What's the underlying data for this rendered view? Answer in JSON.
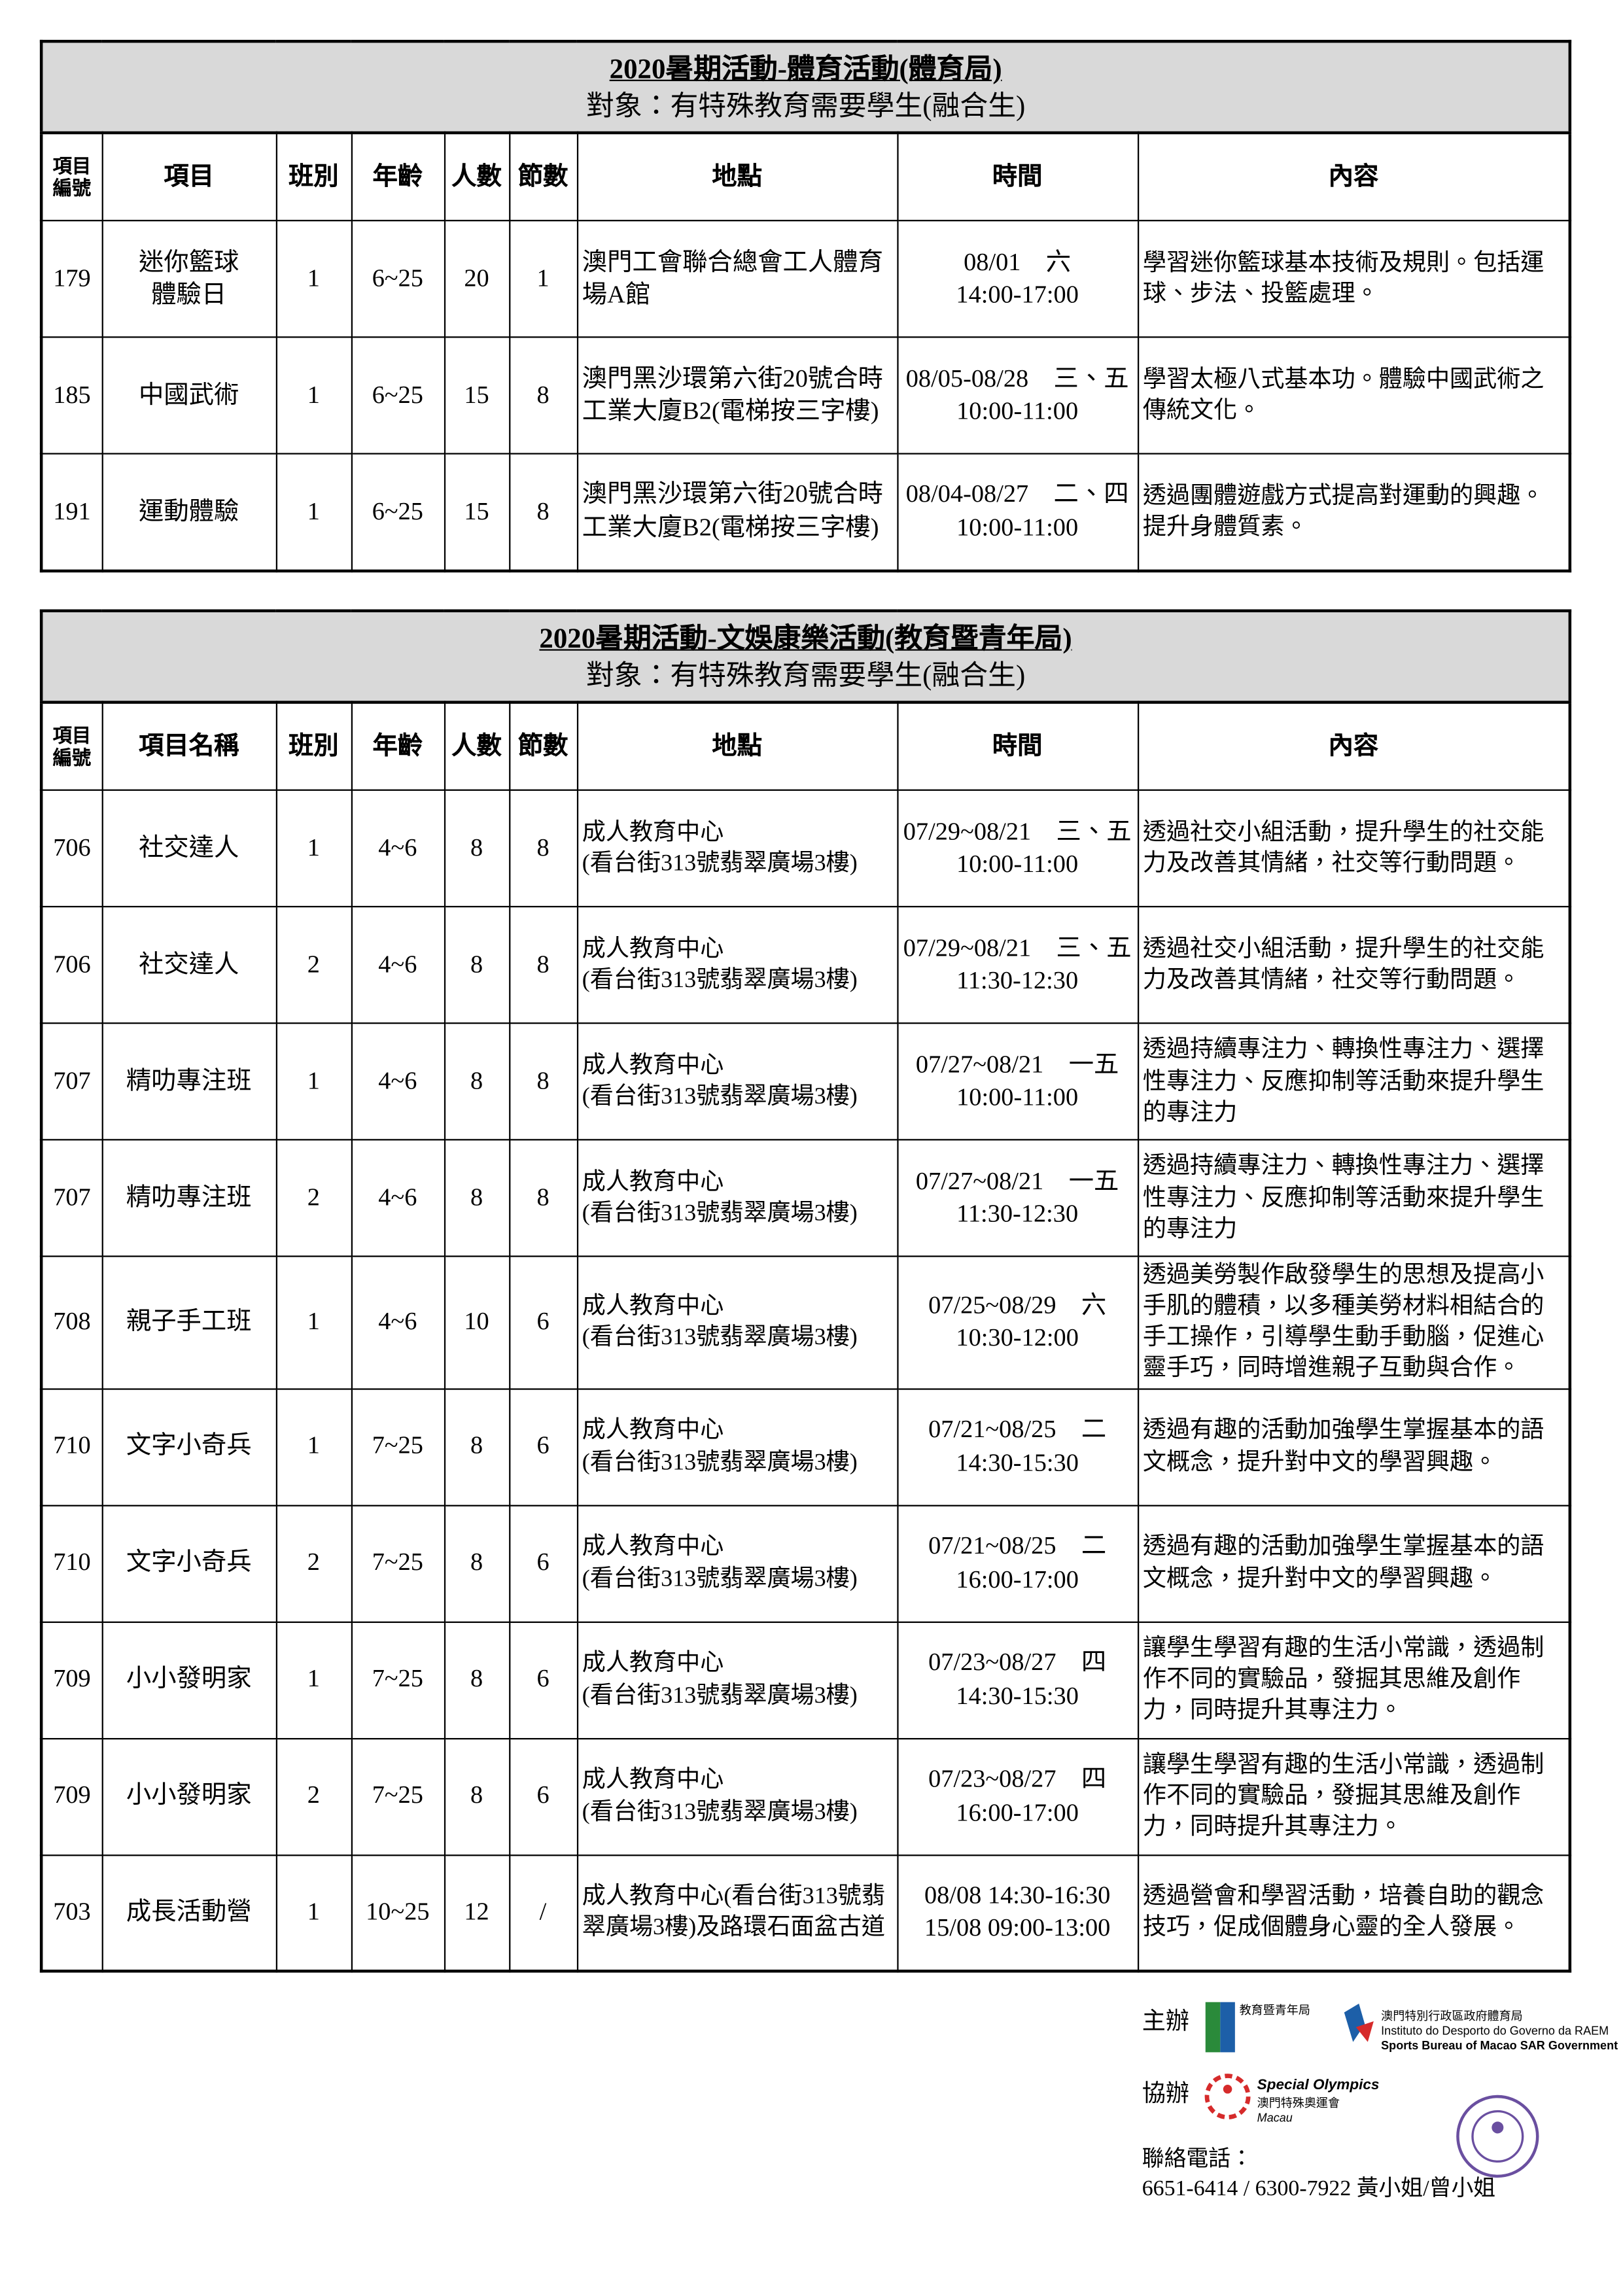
{
  "tables": [
    {
      "title": "2020暑期活動-體育活動(體育局)",
      "subtitle": "對象：有特殊教育需要學生(融合生)",
      "columns": [
        "項目\n編號",
        "項目",
        "班別",
        "年齡",
        "人數",
        "節數",
        "地點",
        "時間",
        "內容"
      ],
      "rows": [
        [
          "179",
          "迷你籃球\n體驗日",
          "1",
          "6~25",
          "20",
          "1",
          "澳門工會聯合總會工人體育場A館",
          "08/01　六\n14:00-17:00",
          "學習迷你籃球基本技術及規則。包括運球、步法、投籃處理。"
        ],
        [
          "185",
          "中國武術",
          "1",
          "6~25",
          "15",
          "8",
          "澳門黑沙環第六街20號合時工業大廈B2(電梯按三字樓)",
          "08/05-08/28　三、五\n10:00-11:00",
          "學習太極八式基本功。體驗中國武術之傳統文化。"
        ],
        [
          "191",
          "運動體驗",
          "1",
          "6~25",
          "15",
          "8",
          "澳門黑沙環第六街20號合時工業大廈B2(電梯按三字樓)",
          "08/04-08/27　二、四\n10:00-11:00",
          "透過團體遊戲方式提高對運動的興趣。提升身體質素。"
        ]
      ]
    },
    {
      "title": "2020暑期活動-文娛康樂活動(教育暨青年局)",
      "subtitle": "對象：有特殊教育需要學生(融合生)",
      "columns": [
        "項目\n編號",
        "項目名稱",
        "班別",
        "年齡",
        "人數",
        "節數",
        "地點",
        "時間",
        "內容"
      ],
      "rows": [
        [
          "706",
          "社交達人",
          "1",
          "4~6",
          "8",
          "8",
          "成人教育中心\n(看台街313號翡翠廣場3樓)",
          "07/29~08/21　三、五\n10:00-11:00",
          "透過社交小組活動，提升學生的社交能力及改善其情緒，社交等行動問題。"
        ],
        [
          "706",
          "社交達人",
          "2",
          "4~6",
          "8",
          "8",
          "成人教育中心\n(看台街313號翡翠廣場3樓)",
          "07/29~08/21　三、五\n11:30-12:30",
          "透過社交小組活動，提升學生的社交能力及改善其情緒，社交等行動問題。"
        ],
        [
          "707",
          "精叻專注班",
          "1",
          "4~6",
          "8",
          "8",
          "成人教育中心\n(看台街313號翡翠廣場3樓)",
          "07/27~08/21　一五\n10:00-11:00",
          "透過持續專注力、轉換性專注力、選擇性專注力、反應抑制等活動來提升學生的專注力"
        ],
        [
          "707",
          "精叻專注班",
          "2",
          "4~6",
          "8",
          "8",
          "成人教育中心\n(看台街313號翡翠廣場3樓)",
          "07/27~08/21　一五\n11:30-12:30",
          "透過持續專注力、轉換性專注力、選擇性專注力、反應抑制等活動來提升學生的專注力"
        ],
        [
          "708",
          "親子手工班",
          "1",
          "4~6",
          "10",
          "6",
          "成人教育中心\n(看台街313號翡翠廣場3樓)",
          "07/25~08/29　六\n10:30-12:00",
          "透過美勞製作啟發學生的思想及提高小手肌的體積，以多種美勞材料相結合的手工操作，引導學生動手動腦，促進心靈手巧，同時增進親子互動與合作。"
        ],
        [
          "710",
          "文字小奇兵",
          "1",
          "7~25",
          "8",
          "6",
          "成人教育中心\n(看台街313號翡翠廣場3樓)",
          "07/21~08/25　二\n14:30-15:30",
          "透過有趣的活動加強學生掌握基本的語文概念，提升對中文的學習興趣。"
        ],
        [
          "710",
          "文字小奇兵",
          "2",
          "7~25",
          "8",
          "6",
          "成人教育中心\n(看台街313號翡翠廣場3樓)",
          "07/21~08/25　二\n16:00-17:00",
          "透過有趣的活動加強學生掌握基本的語文概念，提升對中文的學習興趣。"
        ],
        [
          "709",
          "小小發明家",
          "1",
          "7~25",
          "8",
          "6",
          "成人教育中心\n(看台街313號翡翠廣場3樓)",
          "07/23~08/27　四\n14:30-15:30",
          "讓學生學習有趣的生活小常識，透過制作不同的實驗品，發掘其思維及創作力，同時提升其專注力。"
        ],
        [
          "709",
          "小小發明家",
          "2",
          "7~25",
          "8",
          "6",
          "成人教育中心\n(看台街313號翡翠廣場3樓)",
          "07/23~08/27　四\n16:00-17:00",
          "讓學生學習有趣的生活小常識，透過制作不同的實驗品，發掘其思維及創作力，同時提升其專注力。"
        ],
        [
          "703",
          "成長活動營",
          "1",
          "10~25",
          "12",
          "/",
          "成人教育中心(看台街313號翡翠廣場3樓)及路環石面盆古道",
          "08/08 14:30-16:30\n15/08 09:00-13:00",
          "透過營會和學習活動，培養自助的觀念技巧，促成個體身心靈的全人發展。"
        ]
      ]
    }
  ],
  "footer": {
    "organizer_label": "主辦",
    "organizer_1": "教育暨青年局",
    "organizer_2_zh": "澳門特別行政區政府體育局",
    "organizer_2_pt": "Instituto do Desporto do Governo da RAEM",
    "organizer_2_en": "Sports Bureau of Macao SAR Government",
    "co_organizer_label": "協辦",
    "co_organizer_en": "Special Olympics",
    "co_organizer_zh": "澳門特殊奧運會",
    "co_organizer_place": "Macau",
    "contact_label": "聯絡電話：",
    "contact": "6651-6414 / 6300-7922 黃小姐/曾小姐"
  }
}
